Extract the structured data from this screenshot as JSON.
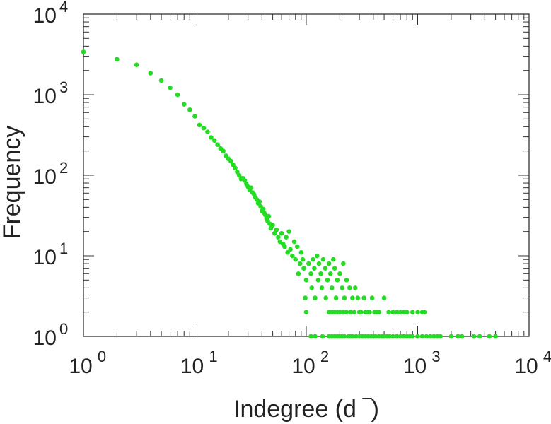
{
  "chart_data": {
    "type": "scatter",
    "xlabel": "Indegree (d  ‾)",
    "ylabel": "Frequency",
    "x_scale": "log",
    "y_scale": "log",
    "xlim": [
      1,
      10000
    ],
    "ylim": [
      1,
      10000
    ],
    "x_ticks": [
      {
        "base": "10",
        "exp": "0",
        "value": 1
      },
      {
        "base": "10",
        "exp": "1",
        "value": 10
      },
      {
        "base": "10",
        "exp": "2",
        "value": 100
      },
      {
        "base": "10",
        "exp": "3",
        "value": 1000
      },
      {
        "base": "10",
        "exp": "4",
        "value": 10000
      }
    ],
    "y_ticks": [
      {
        "base": "10",
        "exp": "0",
        "value": 1
      },
      {
        "base": "10",
        "exp": "1",
        "value": 10
      },
      {
        "base": "10",
        "exp": "2",
        "value": 100
      },
      {
        "base": "10",
        "exp": "3",
        "value": 1000
      },
      {
        "base": "10",
        "exp": "4",
        "value": 10000
      }
    ],
    "grid": false,
    "marker_color": "#22dd22",
    "series": [
      {
        "points": [
          [
            1,
            3400
          ],
          [
            2,
            2750
          ],
          [
            3,
            2350
          ],
          [
            4,
            1850
          ],
          [
            5,
            1500
          ],
          [
            6,
            1220
          ],
          [
            7,
            1000
          ],
          [
            8,
            760
          ],
          [
            9,
            650
          ],
          [
            10,
            540
          ],
          [
            11,
            420
          ],
          [
            12,
            385
          ],
          [
            13,
            345
          ],
          [
            14,
            295
          ],
          [
            15,
            270
          ],
          [
            16,
            240
          ],
          [
            17,
            215
          ],
          [
            18,
            200
          ],
          [
            19,
            175
          ],
          [
            20,
            160
          ],
          [
            21,
            150
          ],
          [
            22,
            135
          ],
          [
            23,
            123
          ],
          [
            24,
            110
          ],
          [
            25,
            100
          ],
          [
            26,
            90
          ],
          [
            27,
            92
          ],
          [
            28,
            86
          ],
          [
            29,
            78
          ],
          [
            30,
            72
          ],
          [
            31,
            66
          ],
          [
            32,
            70
          ],
          [
            33,
            61
          ],
          [
            34,
            58
          ],
          [
            35,
            53
          ],
          [
            36,
            50
          ],
          [
            37,
            45
          ],
          [
            38,
            47
          ],
          [
            39,
            41
          ],
          [
            40,
            36
          ],
          [
            41,
            38
          ],
          [
            42,
            34
          ],
          [
            43,
            32
          ],
          [
            44,
            29
          ],
          [
            45,
            27
          ],
          [
            46,
            31
          ],
          [
            47,
            25
          ],
          [
            48,
            22
          ],
          [
            50,
            24
          ],
          [
            52,
            19
          ],
          [
            54,
            21
          ],
          [
            56,
            17
          ],
          [
            58,
            15
          ],
          [
            60,
            19
          ],
          [
            62,
            14
          ],
          [
            64,
            13
          ],
          [
            66,
            17
          ],
          [
            68,
            11
          ],
          [
            70,
            20
          ],
          [
            72,
            12
          ],
          [
            75,
            10
          ],
          [
            78,
            15
          ],
          [
            80,
            9
          ],
          [
            83,
            13
          ],
          [
            85,
            6
          ],
          [
            88,
            8
          ],
          [
            90,
            11
          ],
          [
            93,
            9
          ],
          [
            95,
            7
          ],
          [
            98,
            3
          ],
          [
            100,
            5
          ],
          [
            100,
            2
          ],
          [
            105,
            8
          ],
          [
            110,
            6
          ],
          [
            112,
            4
          ],
          [
            115,
            9
          ],
          [
            118,
            7
          ],
          [
            120,
            3
          ],
          [
            125,
            10
          ],
          [
            128,
            5
          ],
          [
            130,
            8
          ],
          [
            135,
            6
          ],
          [
            138,
            4
          ],
          [
            142,
            9
          ],
          [
            148,
            7
          ],
          [
            150,
            3
          ],
          [
            155,
            5
          ],
          [
            160,
            8
          ],
          [
            165,
            6
          ],
          [
            170,
            4
          ],
          [
            175,
            9
          ],
          [
            180,
            7
          ],
          [
            185,
            3
          ],
          [
            190,
            5
          ],
          [
            200,
            6
          ],
          [
            210,
            4
          ],
          [
            215,
            8
          ],
          [
            220,
            3
          ],
          [
            230,
            5
          ],
          [
            245,
            4
          ],
          [
            250,
            2
          ],
          [
            260,
            3
          ],
          [
            275,
            4
          ],
          [
            290,
            3
          ],
          [
            310,
            2
          ],
          [
            330,
            3
          ],
          [
            360,
            2
          ],
          [
            390,
            3
          ],
          [
            410,
            2
          ],
          [
            450,
            2
          ],
          [
            500,
            3
          ],
          [
            550,
            2
          ],
          [
            600,
            2
          ],
          [
            650,
            2
          ],
          [
            700,
            2
          ],
          [
            750,
            2
          ],
          [
            800,
            2
          ],
          [
            900,
            2
          ],
          [
            1000,
            2
          ],
          [
            1100,
            2
          ],
          [
            1150,
            2
          ],
          [
            160,
            2
          ],
          [
            170,
            2
          ],
          [
            180,
            2
          ],
          [
            190,
            2
          ],
          [
            200,
            2
          ],
          [
            215,
            2
          ],
          [
            230,
            2
          ],
          [
            270,
            2
          ],
          [
            300,
            2
          ],
          [
            340,
            2
          ],
          [
            370,
            2
          ],
          [
            430,
            2
          ],
          [
            110,
            1
          ],
          [
            120,
            1
          ],
          [
            140,
            1
          ],
          [
            160,
            1
          ],
          [
            170,
            1
          ],
          [
            180,
            1
          ],
          [
            190,
            1
          ],
          [
            200,
            1
          ],
          [
            210,
            1
          ],
          [
            220,
            1
          ],
          [
            240,
            1
          ],
          [
            250,
            1
          ],
          [
            260,
            1
          ],
          [
            280,
            1
          ],
          [
            300,
            1
          ],
          [
            320,
            1
          ],
          [
            340,
            1
          ],
          [
            360,
            1
          ],
          [
            380,
            1
          ],
          [
            400,
            1
          ],
          [
            420,
            1
          ],
          [
            450,
            1
          ],
          [
            480,
            1
          ],
          [
            500,
            1
          ],
          [
            530,
            1
          ],
          [
            560,
            1
          ],
          [
            600,
            1
          ],
          [
            650,
            1
          ],
          [
            700,
            1
          ],
          [
            750,
            1
          ],
          [
            800,
            1
          ],
          [
            850,
            1
          ],
          [
            900,
            1
          ],
          [
            1000,
            1
          ],
          [
            1100,
            1
          ],
          [
            1200,
            1
          ],
          [
            1300,
            1
          ],
          [
            1400,
            1
          ],
          [
            1500,
            1
          ],
          [
            1600,
            1
          ],
          [
            2000,
            1
          ],
          [
            2300,
            1
          ],
          [
            2500,
            1
          ],
          [
            3200,
            1
          ],
          [
            3600,
            1
          ],
          [
            4400,
            1
          ],
          [
            5000,
            1
          ]
        ]
      }
    ]
  }
}
